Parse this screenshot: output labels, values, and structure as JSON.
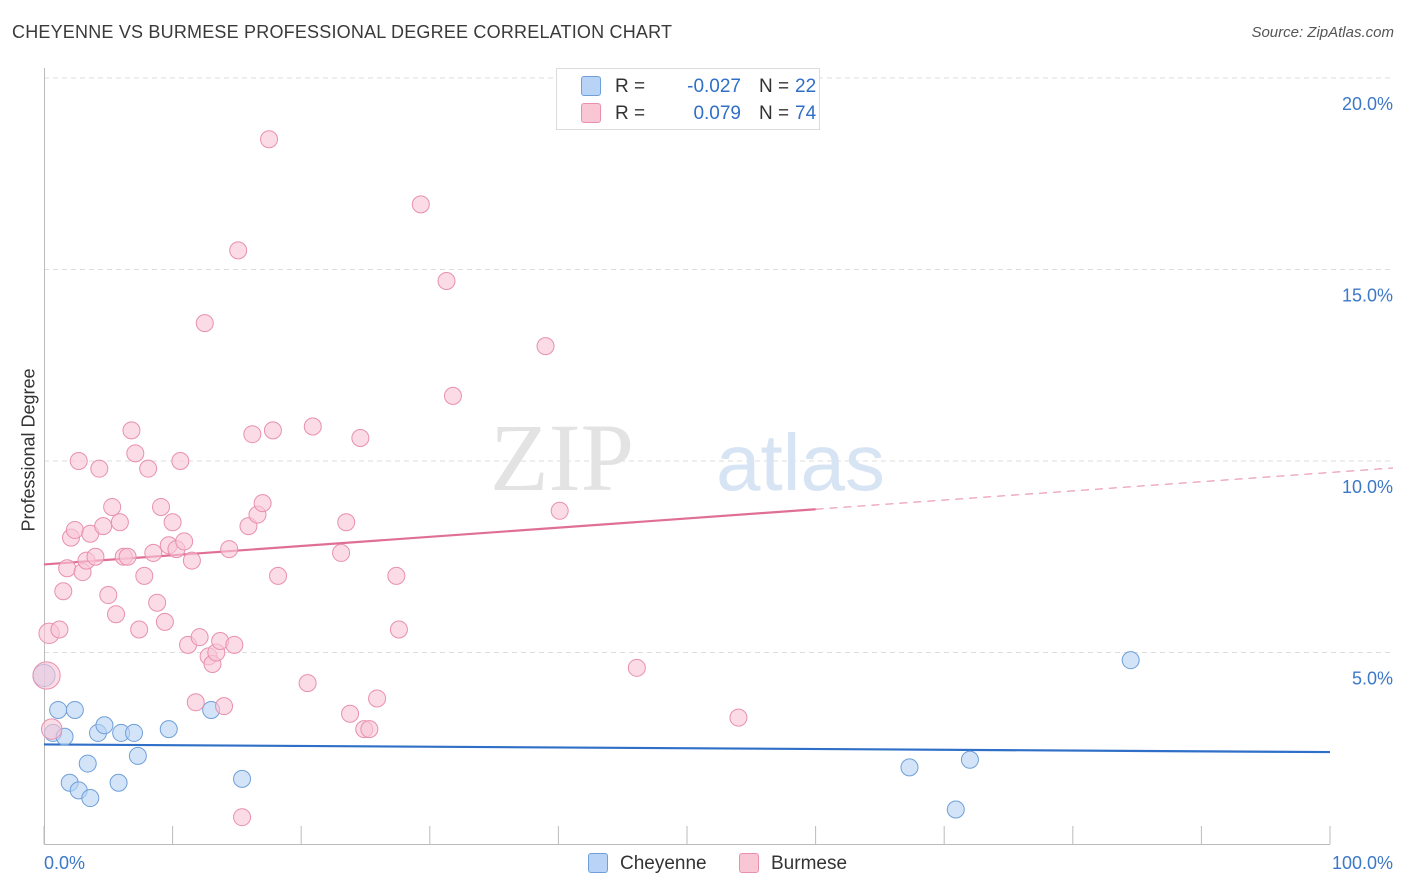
{
  "header": {
    "title": "CHEYENNE VS BURMESE PROFESSIONAL DEGREE CORRELATION CHART",
    "source": "Source: ZipAtlas.com"
  },
  "legend": {
    "rows": [
      {
        "r_label": "R =",
        "r_value": "-0.027",
        "n_label": "N =",
        "n_value": "22"
      },
      {
        "r_label": "R =",
        "r_value": "0.079",
        "n_label": "N =",
        "n_value": "74"
      }
    ]
  },
  "bottom_legend": {
    "series_a": "Cheyenne",
    "series_b": "Burmese"
  },
  "colors": {
    "blue_fill": "#b8d3f5",
    "blue_stroke": "#6f9fd8",
    "blue_line": "#2f6fc7",
    "pink_fill": "#f9c6d6",
    "pink_stroke": "#e890ad",
    "pink_line": "#e06f97",
    "tick_label": "#3c78c8",
    "grid": "#dddddd"
  },
  "chart_data": {
    "type": "scatter",
    "title": "CHEYENNE VS BURMESE PROFESSIONAL DEGREE CORRELATION CHART",
    "xlabel": "",
    "ylabel": "Professional Degree",
    "xlim": [
      0,
      100
    ],
    "ylim": [
      0,
      20
    ],
    "x_tick_labels": [
      "0.0%",
      "100.0%"
    ],
    "y_ticks": [
      5,
      10,
      15,
      20
    ],
    "y_tick_labels": [
      "5.0%",
      "10.0%",
      "15.0%",
      "20.0%"
    ],
    "watermark": {
      "part1": "ZIP",
      "part2": "atlas"
    },
    "series": [
      {
        "name": "Cheyenne",
        "r": -0.027,
        "n": 22,
        "trend": {
          "y_at_0": 2.6,
          "y_at_100": 2.4,
          "solid_to": 100
        },
        "points": [
          {
            "x": 0.0,
            "y": 4.4,
            "s": 1.3
          },
          {
            "x": 0.7,
            "y": 2.9
          },
          {
            "x": 1.1,
            "y": 3.5
          },
          {
            "x": 1.6,
            "y": 2.8
          },
          {
            "x": 2.0,
            "y": 1.6
          },
          {
            "x": 2.4,
            "y": 3.5
          },
          {
            "x": 2.7,
            "y": 1.4
          },
          {
            "x": 3.4,
            "y": 2.1
          },
          {
            "x": 3.6,
            "y": 1.2
          },
          {
            "x": 4.2,
            "y": 2.9
          },
          {
            "x": 4.7,
            "y": 3.1
          },
          {
            "x": 5.8,
            "y": 1.6
          },
          {
            "x": 6.0,
            "y": 2.9
          },
          {
            "x": 7.0,
            "y": 2.9
          },
          {
            "x": 7.3,
            "y": 2.3
          },
          {
            "x": 9.7,
            "y": 3.0
          },
          {
            "x": 13.0,
            "y": 3.5
          },
          {
            "x": 15.4,
            "y": 1.7
          },
          {
            "x": 67.3,
            "y": 2.0
          },
          {
            "x": 70.9,
            "y": 0.9
          },
          {
            "x": 72.0,
            "y": 2.2
          },
          {
            "x": 84.5,
            "y": 4.8
          }
        ]
      },
      {
        "name": "Burmese",
        "r": 0.079,
        "n": 74,
        "trend": {
          "y_at_0": 7.3,
          "y_at_100": 9.7,
          "solid_to": 60
        },
        "points": [
          {
            "x": 0.2,
            "y": 4.4,
            "s": 1.6
          },
          {
            "x": 0.4,
            "y": 5.5,
            "s": 1.2
          },
          {
            "x": 0.6,
            "y": 3.0,
            "s": 1.2
          },
          {
            "x": 1.2,
            "y": 5.6
          },
          {
            "x": 1.5,
            "y": 6.6
          },
          {
            "x": 1.8,
            "y": 7.2
          },
          {
            "x": 2.1,
            "y": 8.0
          },
          {
            "x": 2.4,
            "y": 8.2
          },
          {
            "x": 2.7,
            "y": 10.0
          },
          {
            "x": 3.0,
            "y": 7.1
          },
          {
            "x": 3.3,
            "y": 7.4
          },
          {
            "x": 3.6,
            "y": 8.1
          },
          {
            "x": 4.0,
            "y": 7.5
          },
          {
            "x": 4.3,
            "y": 9.8
          },
          {
            "x": 4.6,
            "y": 8.3
          },
          {
            "x": 5.0,
            "y": 6.5
          },
          {
            "x": 5.3,
            "y": 8.8
          },
          {
            "x": 5.6,
            "y": 6.0
          },
          {
            "x": 5.9,
            "y": 8.4
          },
          {
            "x": 6.2,
            "y": 7.5
          },
          {
            "x": 6.5,
            "y": 7.5
          },
          {
            "x": 6.8,
            "y": 10.8
          },
          {
            "x": 7.1,
            "y": 10.2
          },
          {
            "x": 7.4,
            "y": 5.6
          },
          {
            "x": 7.8,
            "y": 7.0
          },
          {
            "x": 8.1,
            "y": 9.8
          },
          {
            "x": 8.5,
            "y": 7.6
          },
          {
            "x": 8.8,
            "y": 6.3
          },
          {
            "x": 9.1,
            "y": 8.8
          },
          {
            "x": 9.4,
            "y": 5.8
          },
          {
            "x": 9.7,
            "y": 7.8
          },
          {
            "x": 10.0,
            "y": 8.4
          },
          {
            "x": 10.3,
            "y": 7.7
          },
          {
            "x": 10.6,
            "y": 10.0
          },
          {
            "x": 10.9,
            "y": 7.9
          },
          {
            "x": 11.2,
            "y": 5.2
          },
          {
            "x": 11.5,
            "y": 7.4
          },
          {
            "x": 11.8,
            "y": 3.7
          },
          {
            "x": 12.1,
            "y": 5.4
          },
          {
            "x": 12.5,
            "y": 13.6
          },
          {
            "x": 12.8,
            "y": 4.9
          },
          {
            "x": 13.1,
            "y": 4.7
          },
          {
            "x": 13.4,
            "y": 5.0
          },
          {
            "x": 13.7,
            "y": 5.3
          },
          {
            "x": 14.0,
            "y": 3.6
          },
          {
            "x": 14.4,
            "y": 7.7
          },
          {
            "x": 14.8,
            "y": 5.2
          },
          {
            "x": 15.1,
            "y": 15.5
          },
          {
            "x": 15.4,
            "y": 0.7
          },
          {
            "x": 15.9,
            "y": 8.3
          },
          {
            "x": 16.2,
            "y": 10.7
          },
          {
            "x": 16.6,
            "y": 8.6
          },
          {
            "x": 17.0,
            "y": 8.9
          },
          {
            "x": 17.5,
            "y": 18.4
          },
          {
            "x": 17.8,
            "y": 10.8
          },
          {
            "x": 18.2,
            "y": 7.0
          },
          {
            "x": 20.5,
            "y": 4.2
          },
          {
            "x": 20.9,
            "y": 10.9
          },
          {
            "x": 23.1,
            "y": 7.6
          },
          {
            "x": 23.5,
            "y": 8.4
          },
          {
            "x": 23.8,
            "y": 3.4
          },
          {
            "x": 24.6,
            "y": 10.6
          },
          {
            "x": 24.9,
            "y": 3.0
          },
          {
            "x": 25.3,
            "y": 3.0
          },
          {
            "x": 25.9,
            "y": 3.8
          },
          {
            "x": 27.4,
            "y": 7.0
          },
          {
            "x": 27.6,
            "y": 5.6
          },
          {
            "x": 29.3,
            "y": 16.7
          },
          {
            "x": 31.3,
            "y": 14.7
          },
          {
            "x": 31.8,
            "y": 11.7
          },
          {
            "x": 39.0,
            "y": 13.0
          },
          {
            "x": 40.1,
            "y": 8.7
          },
          {
            "x": 46.1,
            "y": 4.6
          },
          {
            "x": 54.0,
            "y": 3.3
          }
        ]
      }
    ]
  }
}
